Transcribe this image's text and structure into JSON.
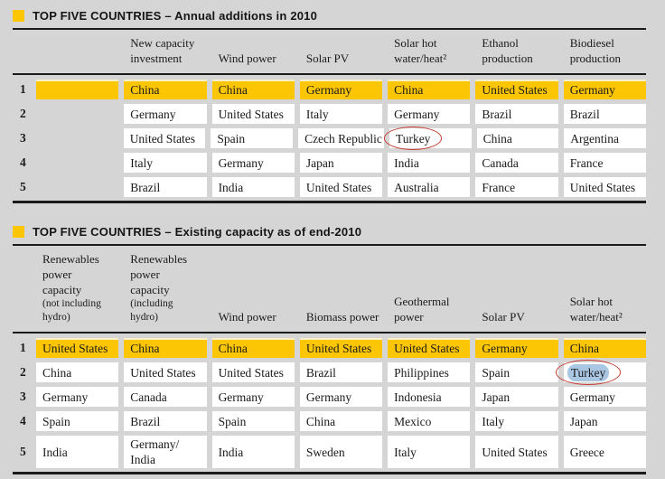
{
  "page": {
    "colors": {
      "page_background": "#d5d5d5",
      "accent_yellow": "#fcc605",
      "rule_line": "#1b1b1b",
      "annotation_red": "#c53c32",
      "selection_blue": "#a9c7e3"
    },
    "bullet_icon": "yellow-square"
  },
  "sections": [
    {
      "title": "TOP FIVE COUNTRIES – Annual additions in 2010",
      "columns": [
        {
          "label": ""
        },
        {
          "label": "New capacity\ninvestment"
        },
        {
          "label": "Wind power"
        },
        {
          "label": "Solar PV"
        },
        {
          "label": "Solar hot\nwater/heat²"
        },
        {
          "label": "Ethanol\nproduction"
        },
        {
          "label": "Biodiesel\nproduction"
        }
      ],
      "rows": [
        {
          "rank": "1",
          "highlight": true,
          "cells": [
            "",
            "China",
            "China",
            "Germany",
            "China",
            "United States",
            "Germany"
          ]
        },
        {
          "rank": "2",
          "cells": [
            "",
            "Germany",
            "United States",
            "Italy",
            "Germany",
            "Brazil",
            "Brazil"
          ]
        },
        {
          "rank": "3",
          "cells": [
            "",
            "United States",
            "Spain",
            "Czech Republic",
            "Turkey",
            "China",
            "Argentina"
          ]
        },
        {
          "rank": "4",
          "cells": [
            "",
            "Italy",
            "Germany",
            "Japan",
            "India",
            "Canada",
            "France"
          ]
        },
        {
          "rank": "5",
          "cells": [
            "",
            "Brazil",
            "India",
            "United States",
            "Australia",
            "France",
            "United States"
          ]
        }
      ]
    },
    {
      "title": "TOP FIVE COUNTRIES – Existing capacity as of end-2010",
      "columns": [
        {
          "label": "Renewables\npower\ncapacity",
          "sub": "(not including\nhydro)"
        },
        {
          "label": "Renewables\npower\ncapacity",
          "sub": "(including\nhydro)"
        },
        {
          "label": "Wind power"
        },
        {
          "label": "Biomass power"
        },
        {
          "label": "Geothermal\npower"
        },
        {
          "label": "Solar PV"
        },
        {
          "label": "Solar hot\nwater/heat²"
        }
      ],
      "rows": [
        {
          "rank": "1",
          "highlight": true,
          "cells": [
            "United States",
            "China",
            "China",
            "United States",
            "United States",
            "Germany",
            "China"
          ]
        },
        {
          "rank": "2",
          "cells": [
            "China",
            "United States",
            "United States",
            "Brazil",
            "Philippines",
            "Spain",
            "Turkey"
          ]
        },
        {
          "rank": "3",
          "cells": [
            "Germany",
            "Canada",
            "Germany",
            "Germany",
            "Indonesia",
            "Japan",
            "Germany"
          ]
        },
        {
          "rank": "4",
          "cells": [
            "Spain",
            "Brazil",
            "Spain",
            "China",
            "Mexico",
            "Italy",
            "Japan"
          ]
        },
        {
          "rank": "5",
          "cells": [
            "India",
            "Germany/\nIndia",
            "India",
            "Sweden",
            "Italy",
            "United States",
            "Greece"
          ]
        }
      ]
    }
  ],
  "annotations": [
    {
      "section": 0,
      "row": 2,
      "col": 4,
      "type": "red-ellipse",
      "target": "Turkey"
    },
    {
      "section": 1,
      "row": 1,
      "col": 6,
      "type": "red-ellipse-blue-highlight",
      "target": "Turkey"
    }
  ]
}
